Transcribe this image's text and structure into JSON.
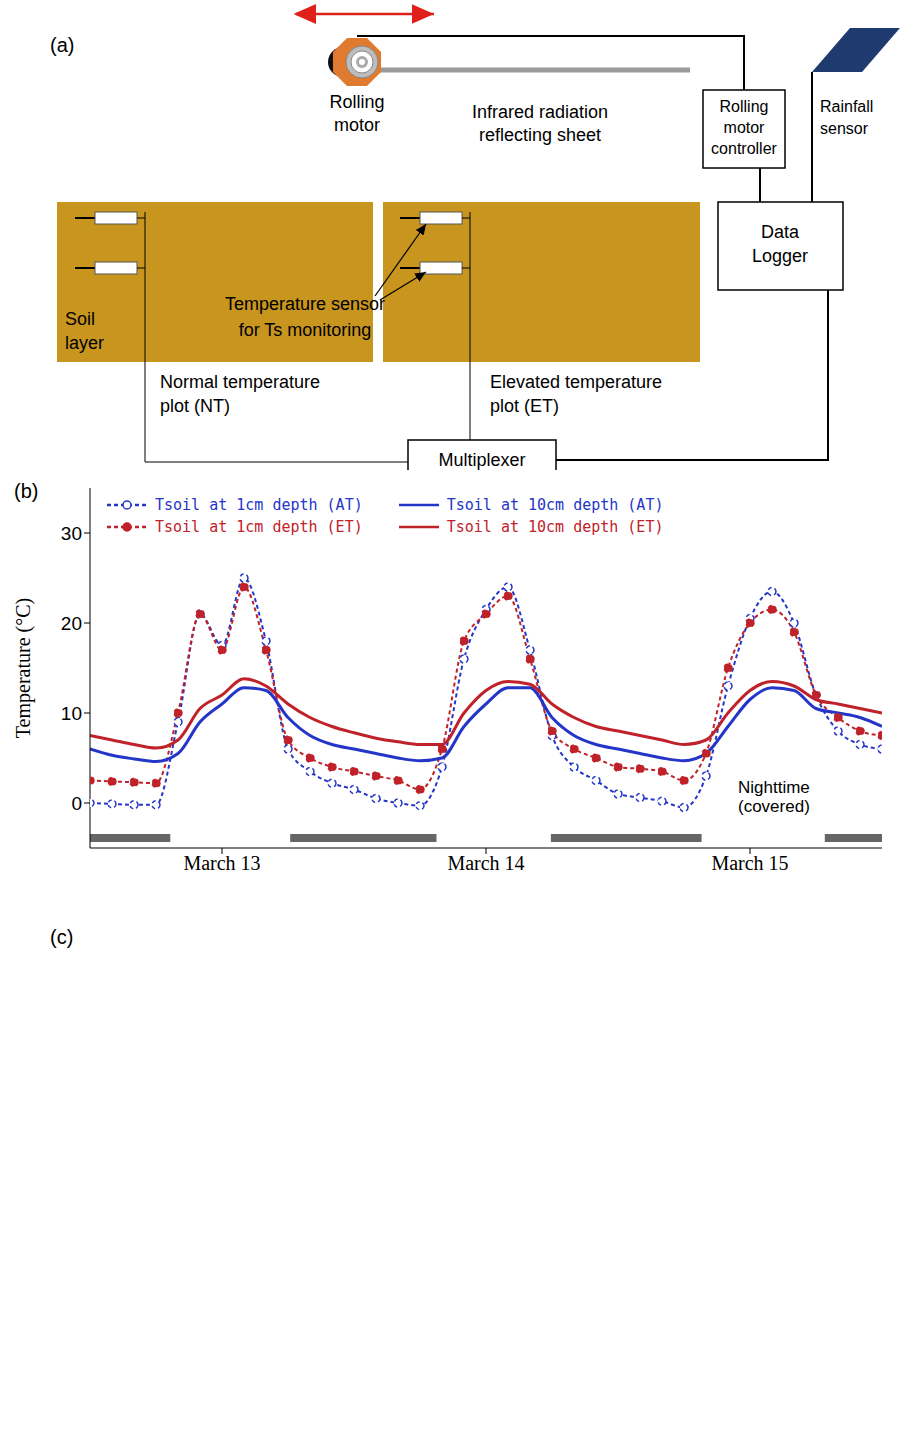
{
  "diagram": {
    "label": "(a)",
    "rolling_motor": "Rolling motor",
    "sheet": "Infrared radiation reflecting sheet",
    "controller": "Rolling motor controller",
    "rainfall_sensor": "Rainfall sensor",
    "data_logger": "Data Logger",
    "soil_layer": "Soil layer",
    "temperature_sensor": "Temperature sensor for Ts monitoring",
    "nt_plot": "Normal temperature plot (NT)",
    "et_plot": "Elevated temperature plot (ET)",
    "multiplexer": "Multiplexer"
  },
  "chart_data": {
    "type": "line",
    "panel_label": "(b)",
    "y_label": "Temperature (°C)",
    "x": [
      0,
      2,
      4,
      6,
      8,
      10,
      12,
      14,
      16,
      18,
      20,
      22,
      24,
      26,
      28,
      30,
      32,
      34,
      36,
      38,
      40,
      42,
      44,
      46,
      48,
      50,
      52,
      54,
      56,
      58,
      60,
      62,
      64,
      66,
      68,
      70,
      72
    ],
    "xlim": [
      0,
      72
    ],
    "xticks": [
      {
        "value": 12,
        "label": "March 13"
      },
      {
        "value": 36,
        "label": "March 14"
      },
      {
        "value": 60,
        "label": "March 15"
      }
    ],
    "ylim": [
      -5,
      35
    ],
    "yticks": [
      0,
      10,
      20,
      30
    ],
    "legend": "top",
    "grid": false,
    "series": [
      {
        "name": "Tsoil at 1cm depth (AT)",
        "color": "#2436c8",
        "line_style": "dashed",
        "marker": "circle_open",
        "values": [
          0,
          -0.1,
          -0.2,
          -0.2,
          9,
          21,
          17.5,
          25,
          18,
          6,
          3.5,
          2.2,
          1.5,
          0.5,
          0,
          -0.3,
          4,
          16,
          21.5,
          24,
          17,
          7.5,
          4,
          2.5,
          1,
          0.6,
          0.2,
          -0.5,
          3,
          13,
          20.5,
          23.5,
          20,
          12,
          8,
          6.5,
          6
        ]
      },
      {
        "name": "Tsoil at 1cm depth (ET)",
        "color": "#c0222a",
        "line_style": "dashed",
        "marker": "circle_filled",
        "values": [
          2.5,
          2.4,
          2.3,
          2.2,
          10,
          21,
          17,
          24,
          17,
          7,
          5,
          4,
          3.5,
          3,
          2.5,
          1.5,
          6,
          18,
          21,
          23,
          16,
          8,
          6,
          5,
          4,
          3.8,
          3.5,
          2.5,
          5.5,
          15,
          20,
          21.5,
          19,
          12,
          9.5,
          8,
          7.5
        ]
      },
      {
        "name": "Tsoil at 10cm depth (AT)",
        "color": "#2436c8",
        "line_style": "solid",
        "marker": "none",
        "values": [
          6,
          5.3,
          4.9,
          4.6,
          5.5,
          9,
          11,
          12.8,
          12.5,
          9.5,
          7.5,
          6.5,
          6,
          5.5,
          5,
          4.7,
          5,
          8.5,
          11,
          12.8,
          12.8,
          9.5,
          7.5,
          6.5,
          6,
          5.5,
          5,
          4.7,
          5.5,
          8.5,
          11.5,
          12.8,
          12.5,
          10.5,
          10,
          9.5,
          8.5
        ]
      },
      {
        "name": "Tsoil at 10cm depth (ET)",
        "color": "#c0222a",
        "line_style": "solid",
        "marker": "none",
        "values": [
          7.5,
          7,
          6.5,
          6.1,
          7,
          10.5,
          12,
          13.8,
          13,
          11,
          9.5,
          8.5,
          7.8,
          7.2,
          6.8,
          6.5,
          6.5,
          10,
          12.5,
          13.5,
          13.2,
          11,
          9.5,
          8.5,
          8,
          7.5,
          7,
          6.5,
          7,
          10,
          12.5,
          13.5,
          13,
          11.5,
          11,
          10.5,
          10
        ]
      }
    ],
    "annotation": "Nighttime (covered)",
    "nighttime_periods": [
      [
        0,
        7.3
      ],
      [
        18.2,
        31.5
      ],
      [
        41.9,
        55.6
      ],
      [
        66.8,
        72
      ]
    ]
  },
  "photo": {
    "label": "(c)"
  }
}
